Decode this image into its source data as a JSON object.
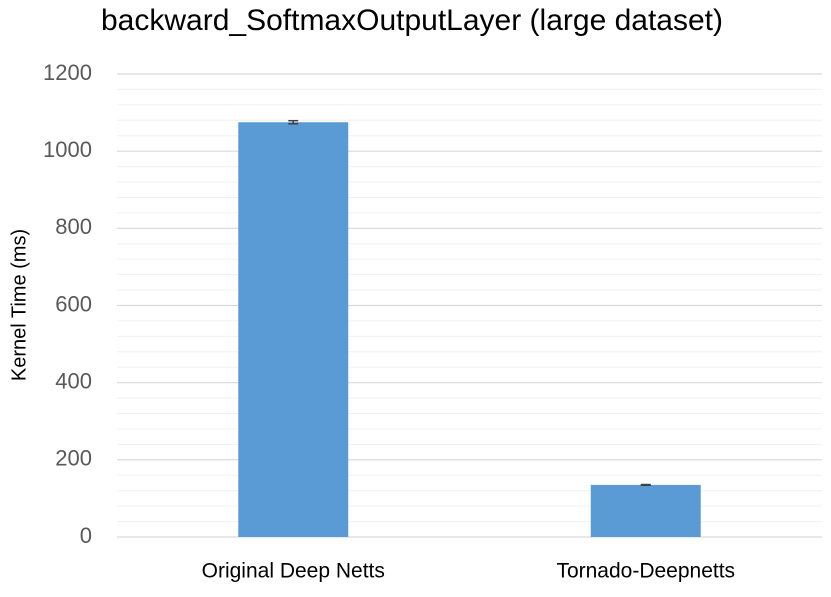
{
  "chart_data": {
    "type": "bar",
    "title": "backward_SoftmaxOutputLayer (large dataset)",
    "y_label": "Kernel Time (ms)",
    "categories": [
      "Original Deep Netts",
      "Tornado-Deepnetts"
    ],
    "values": [
      1075,
      135
    ],
    "errors": [
      4,
      1
    ],
    "color": "#5b9bd5",
    "error_color": "#404040",
    "ylim": [
      0,
      1200
    ],
    "yticks": [
      0,
      200,
      400,
      600,
      800,
      1000,
      1200
    ],
    "minor_yticks": [
      40,
      80,
      120,
      160,
      240,
      280,
      320,
      360,
      440,
      480,
      520,
      560,
      640,
      680,
      720,
      760,
      840,
      880,
      920,
      960,
      1040,
      1080,
      1120,
      1160
    ],
    "grid": true
  }
}
